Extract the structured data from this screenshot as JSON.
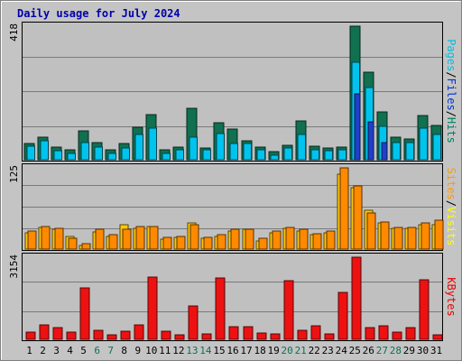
{
  "chart_data": {
    "type": "bar",
    "title": "Daily usage for July 2024",
    "categories": [
      "1",
      "2",
      "3",
      "4",
      "5",
      "6",
      "7",
      "8",
      "9",
      "10",
      "11",
      "12",
      "13",
      "14",
      "15",
      "16",
      "17",
      "18",
      "19",
      "20",
      "21",
      "22",
      "23",
      "24",
      "25",
      "26",
      "27",
      "28",
      "29",
      "30",
      "31"
    ],
    "weekend_days": [
      "6",
      "7",
      "13",
      "14",
      "20",
      "21",
      "27",
      "28"
    ],
    "panels": [
      {
        "id": "hits",
        "ymax_label": "418",
        "ylim": [
          0,
          418
        ],
        "legend": [
          "Pages",
          "/",
          "Files",
          "/",
          "Hits"
        ],
        "legend_colors": [
          "#00c0e0",
          "#000000",
          "#0033cc",
          "#000000",
          "#008060"
        ],
        "series": [
          {
            "name": "Hits",
            "color": "#107050",
            "values": [
              50,
              70,
              40,
              30,
              90,
              55,
              32,
              50,
              102,
              142,
              32,
              40,
              162,
              38,
              115,
              95,
              60,
              40,
              25,
              45,
              122,
              42,
              38,
              40,
              418,
              275,
              150,
              72,
              65,
              138,
              108
            ]
          },
          {
            "name": "Files",
            "color": "#00c4ee",
            "values": [
              42,
              58,
              28,
              20,
              55,
              40,
              20,
              38,
              80,
              100,
              20,
              30,
              72,
              32,
              82,
              52,
              50,
              30,
              15,
              38,
              80,
              30,
              28,
              32,
              305,
              225,
              105,
              55,
              55,
              100,
              78
            ]
          },
          {
            "name": "Pages",
            "color": "#2040cc",
            "values": [
              0,
              0,
              0,
              0,
              0,
              0,
              0,
              0,
              0,
              0,
              0,
              0,
              0,
              0,
              0,
              0,
              0,
              0,
              0,
              0,
              0,
              0,
              0,
              0,
              205,
              120,
              55,
              0,
              0,
              0,
              0
            ]
          }
        ]
      },
      {
        "id": "visits",
        "ymax_label": "125",
        "ylim": [
          0,
          125
        ],
        "legend": [
          "Sites",
          "/",
          "Visits"
        ],
        "legend_colors": [
          "#ff9900",
          "#000000",
          "#ffff00"
        ],
        "series": [
          {
            "name": "Visits",
            "color": "#ffc800",
            "values": [
              25,
              33,
              30,
              20,
              5,
              27,
              20,
              37,
              32,
              35,
              15,
              18,
              40,
              16,
              20,
              28,
              30,
              13,
              25,
              32,
              28,
              22,
              25,
              115,
              95,
              60,
              40,
              32,
              32,
              38,
              38
            ]
          },
          {
            "name": "Sites",
            "color": "#ff8a00",
            "values": [
              28,
              35,
              32,
              16,
              8,
              30,
              22,
              30,
              35,
              35,
              18,
              20,
              37,
              18,
              22,
              30,
              31,
              16,
              28,
              34,
              30,
              24,
              28,
              125,
              97,
              55,
              42,
              33,
              33,
              40,
              45
            ]
          }
        ]
      },
      {
        "id": "kbytes",
        "ymax_label": "3154",
        "ylim": [
          0,
          3154
        ],
        "legend": [
          "KBytes"
        ],
        "legend_colors": [
          "#e80000"
        ],
        "series": [
          {
            "name": "KBytes",
            "color": "#ee1111",
            "values": [
              290,
              540,
              460,
              260,
              1990,
              360,
              160,
              310,
              540,
              2400,
              320,
              170,
              1290,
              220,
              2370,
              490,
              480,
              230,
              210,
              2270,
              330,
              530,
              210,
              1810,
              3154,
              440,
              520,
              290,
              440,
              2300,
              190
            ]
          }
        ]
      }
    ]
  }
}
